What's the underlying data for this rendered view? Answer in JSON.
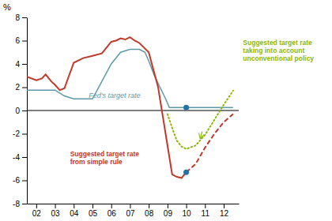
{
  "chart_data": {
    "type": "line",
    "ylabel": "%",
    "xlim": [
      2001.5,
      2012.8
    ],
    "xticks": [
      {
        "value": 2002,
        "label": "02"
      },
      {
        "value": 2003,
        "label": "03"
      },
      {
        "value": 2004,
        "label": "04"
      },
      {
        "value": 2005,
        "label": "05"
      },
      {
        "value": 2006,
        "label": "06"
      },
      {
        "value": 2007,
        "label": "07"
      },
      {
        "value": 2008,
        "label": "08"
      },
      {
        "value": 2009,
        "label": "09"
      },
      {
        "value": 2010,
        "label": "10"
      },
      {
        "value": 2011,
        "label": "11"
      },
      {
        "value": 2012,
        "label": "12"
      }
    ],
    "ylim": [
      -8,
      8
    ],
    "yticks": [
      -8,
      -6,
      -4,
      -2,
      0,
      2,
      4,
      6,
      8
    ],
    "grid": false,
    "reference_lines": [
      {
        "y": 0,
        "color": "#000000"
      }
    ],
    "series": [
      {
        "type": "line",
        "color": "#5b9aa8",
        "line_style": "solid",
        "x": [
          2001.5,
          2002.0,
          2002.5,
          2003.0,
          2003.5,
          2004.0,
          2004.5,
          2005.0,
          2005.5,
          2006.0,
          2006.5,
          2007.0,
          2007.3,
          2007.5,
          2007.8,
          2008.0,
          2008.3,
          2008.6,
          2008.9,
          2009.1,
          2009.5,
          2010.0,
          2010.5,
          2011.0,
          2011.5,
          2012.0,
          2012.5
        ],
        "values": [
          1.75,
          1.75,
          1.75,
          1.75,
          1.25,
          1.0,
          1.0,
          1.0,
          2.5,
          4.0,
          5.0,
          5.25,
          5.25,
          5.25,
          5.0,
          4.25,
          3.0,
          2.0,
          1.0,
          0.25,
          0.25,
          0.25,
          0.25,
          0.25,
          0.25,
          0.25,
          0.25
        ]
      },
      {
        "type": "line",
        "color": "#c0392b",
        "line_style": "solid",
        "x": [
          2001.5,
          2002.0,
          2002.3,
          2002.5,
          2002.8,
          2003.0,
          2003.25,
          2003.5,
          2004.0,
          2004.5,
          2005.0,
          2005.5,
          2006.0,
          2006.25,
          2006.5,
          2006.75,
          2007.0,
          2007.25,
          2007.5,
          2007.75,
          2008.0,
          2008.25,
          2008.5,
          2008.75,
          2009.0,
          2009.25,
          2009.5,
          2009.75,
          2010.0
        ],
        "values": [
          2.9,
          2.6,
          2.75,
          3.1,
          2.5,
          2.2,
          1.75,
          1.9,
          4.1,
          4.5,
          4.7,
          4.9,
          5.9,
          6.0,
          6.2,
          6.1,
          6.3,
          6.0,
          5.8,
          5.4,
          5.0,
          3.5,
          2.0,
          -0.5,
          -3.0,
          -5.5,
          -5.7,
          -5.8,
          -5.3
        ]
      },
      {
        "type": "line",
        "color": "#c0392b",
        "line_style": "dashed",
        "x": [
          2010.0,
          2010.5,
          2011.0,
          2011.5,
          2012.0,
          2012.5
        ],
        "values": [
          -5.3,
          -4.6,
          -3.2,
          -2.0,
          -1.0,
          -0.3
        ]
      },
      {
        "type": "line",
        "color": "#8db600",
        "line_style": "dotted",
        "x": [
          2009.0,
          2009.25,
          2009.5,
          2009.75,
          2010.0,
          2010.5,
          2011.0,
          2011.5,
          2012.0,
          2012.5
        ],
        "values": [
          -0.3,
          -1.5,
          -2.6,
          -3.1,
          -3.3,
          -3.0,
          -2.1,
          -0.8,
          0.5,
          1.7
        ]
      },
      {
        "type": "scatter",
        "color": "#2471a3",
        "marker": "circle",
        "x": [
          2010.0,
          2010.0
        ],
        "values": [
          0.25,
          -5.3
        ]
      }
    ],
    "annotations": [
      {
        "text": "Fed's target rate",
        "color": "#5b9aa8"
      },
      {
        "text": "Suggested target rate\nfrom simple rule",
        "color": "#c0392b"
      },
      {
        "text": "Suggested target rate\ntaking into account\nunconventional policy",
        "color": "#8db600"
      }
    ]
  }
}
